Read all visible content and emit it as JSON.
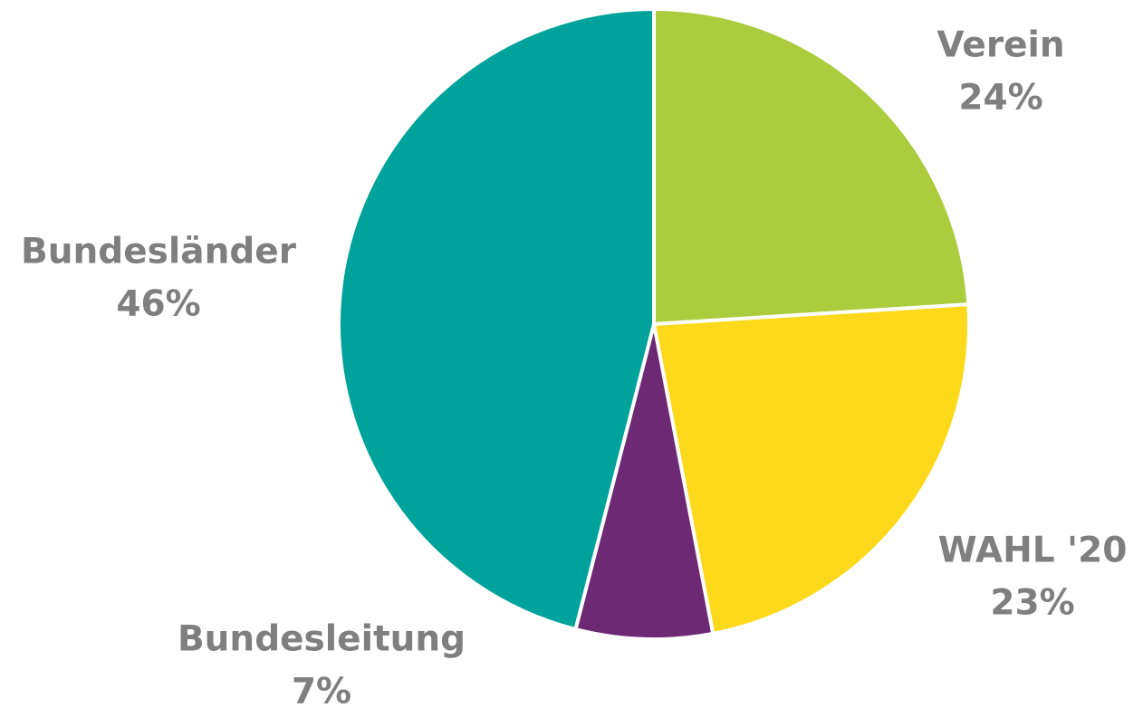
{
  "chart_data": {
    "type": "pie",
    "categories": [
      "Verein",
      "WAHL '20",
      "Bundesleitung",
      "Bundesländer"
    ],
    "values": [
      24,
      23,
      7,
      46
    ],
    "value_labels": [
      "24%",
      "23%",
      "7%",
      "46%"
    ],
    "colors": [
      "#abcc3c",
      "#fdd91c",
      "#6e2975",
      "#00a39b"
    ]
  }
}
